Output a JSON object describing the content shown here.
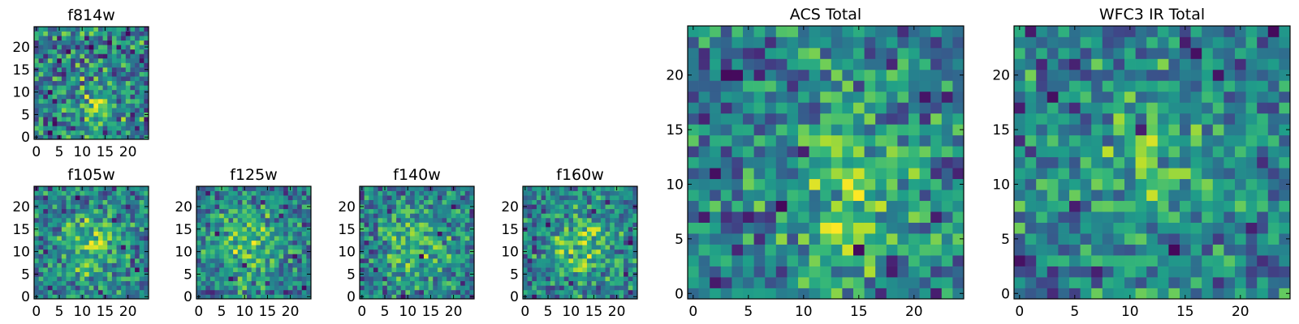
{
  "chart_data": [
    {
      "type": "heatmap",
      "title": "f814w",
      "colormap": "viridis",
      "xlim": [
        0,
        24
      ],
      "ylim": [
        0,
        24
      ],
      "xticks": [
        0,
        5,
        10,
        15,
        20
      ],
      "yticks": [
        0,
        5,
        10,
        15,
        20
      ],
      "grid_size": 25,
      "seed": 814,
      "noise": 0.62,
      "structure": [
        {
          "cx": 13,
          "cy": 8,
          "sx": 4,
          "sy": 6,
          "amp": 0.22
        }
      ],
      "dark_cells": [
        [
          18,
          20
        ],
        [
          3,
          10
        ],
        [
          8,
          2
        ],
        [
          21,
          5
        ],
        [
          6,
          14
        ],
        [
          11,
          22
        ],
        [
          23,
          17
        ],
        [
          15,
          1
        ]
      ]
    },
    {
      "type": "heatmap",
      "title": "f105w",
      "colormap": "viridis",
      "xlim": [
        0,
        24
      ],
      "ylim": [
        0,
        24
      ],
      "xticks": [
        0,
        5,
        10,
        15,
        20
      ],
      "yticks": [
        0,
        5,
        10,
        15,
        20
      ],
      "grid_size": 25,
      "seed": 105,
      "noise": 0.5,
      "structure": [
        {
          "cx": 12,
          "cy": 11,
          "sx": 5,
          "sy": 6,
          "amp": 0.3
        }
      ],
      "dark_cells": [
        [
          3,
          2
        ],
        [
          17,
          17
        ],
        [
          20,
          20
        ],
        [
          14,
          1
        ],
        [
          2,
          10
        ],
        [
          22,
          6
        ],
        [
          9,
          22
        ],
        [
          19,
          11
        ]
      ]
    },
    {
      "type": "heatmap",
      "title": "f125w",
      "colormap": "viridis",
      "xlim": [
        0,
        24
      ],
      "ylim": [
        0,
        24
      ],
      "xticks": [
        0,
        5,
        10,
        15,
        20
      ],
      "yticks": [
        0,
        5,
        10,
        15,
        20
      ],
      "grid_size": 25,
      "seed": 125,
      "noise": 0.5,
      "structure": [
        {
          "cx": 11,
          "cy": 12,
          "sx": 5,
          "sy": 6,
          "amp": 0.3
        }
      ],
      "dark_cells": [
        [
          2,
          23
        ],
        [
          18,
          18
        ],
        [
          7,
          4
        ],
        [
          21,
          9
        ],
        [
          14,
          21
        ],
        [
          4,
          14
        ],
        [
          23,
          2
        ],
        [
          10,
          7
        ]
      ]
    },
    {
      "type": "heatmap",
      "title": "f140w",
      "colormap": "viridis",
      "xlim": [
        0,
        24
      ],
      "ylim": [
        0,
        24
      ],
      "xticks": [
        0,
        5,
        10,
        15,
        20
      ],
      "yticks": [
        0,
        5,
        10,
        15,
        20
      ],
      "grid_size": 25,
      "seed": 140,
      "noise": 0.5,
      "structure": [
        {
          "cx": 12,
          "cy": 11,
          "sx": 5,
          "sy": 6,
          "amp": 0.28
        }
      ],
      "dark_cells": [
        [
          20,
          20
        ],
        [
          9,
          0
        ],
        [
          3,
          6
        ],
        [
          17,
          14
        ],
        [
          22,
          3
        ],
        [
          6,
          19
        ],
        [
          13,
          9
        ],
        [
          1,
          12
        ]
      ]
    },
    {
      "type": "heatmap",
      "title": "f160w",
      "colormap": "viridis",
      "xlim": [
        0,
        24
      ],
      "ylim": [
        0,
        24
      ],
      "xticks": [
        0,
        5,
        10,
        15,
        20
      ],
      "yticks": [
        0,
        5,
        10,
        15,
        20
      ],
      "grid_size": 25,
      "seed": 160,
      "noise": 0.5,
      "structure": [
        {
          "cx": 12,
          "cy": 11,
          "sx": 5,
          "sy": 6,
          "amp": 0.3
        }
      ],
      "dark_cells": [
        [
          22,
          5
        ],
        [
          2,
          0
        ],
        [
          18,
          21
        ],
        [
          5,
          16
        ],
        [
          23,
          12
        ],
        [
          10,
          3
        ],
        [
          15,
          19
        ],
        [
          1,
          8
        ]
      ]
    },
    {
      "type": "heatmap",
      "title": "ACS Total",
      "colormap": "viridis",
      "xlim": [
        0,
        24
      ],
      "ylim": [
        0,
        24
      ],
      "xticks": [
        0,
        5,
        10,
        15,
        20
      ],
      "yticks": [
        0,
        5,
        10,
        15,
        20
      ],
      "grid_size": 25,
      "seed": 901,
      "noise": 0.52,
      "structure": [
        {
          "cx": 14,
          "cy": 9,
          "sx": 4,
          "sy": 6,
          "amp": 0.28
        }
      ],
      "dark_cells": [
        [
          3,
          20
        ],
        [
          4,
          20
        ],
        [
          18,
          3
        ],
        [
          18,
          2
        ],
        [
          5,
          7
        ],
        [
          8,
          8
        ],
        [
          22,
          0
        ],
        [
          21,
          18
        ],
        [
          23,
          18
        ],
        [
          15,
          4
        ],
        [
          10,
          13
        ],
        [
          2,
          11
        ]
      ]
    },
    {
      "type": "heatmap",
      "title": "WFC3 IR Total",
      "colormap": "viridis",
      "xlim": [
        0,
        24
      ],
      "ylim": [
        0,
        24
      ],
      "xticks": [
        0,
        5,
        10,
        15,
        20
      ],
      "yticks": [
        0,
        5,
        10,
        15,
        20
      ],
      "grid_size": 25,
      "seed": 902,
      "noise": 0.5,
      "structure": [
        {
          "cx": 12,
          "cy": 11,
          "sx": 5,
          "sy": 5,
          "amp": 0.24
        }
      ],
      "dark_cells": [
        [
          1,
          24
        ],
        [
          5,
          21
        ],
        [
          7,
          2
        ],
        [
          5,
          8
        ],
        [
          23,
          24
        ],
        [
          18,
          20
        ],
        [
          3,
          18
        ],
        [
          0,
          3
        ],
        [
          11,
          15
        ],
        [
          16,
          22
        ],
        [
          21,
          6
        ],
        [
          14,
          4
        ]
      ]
    }
  ]
}
